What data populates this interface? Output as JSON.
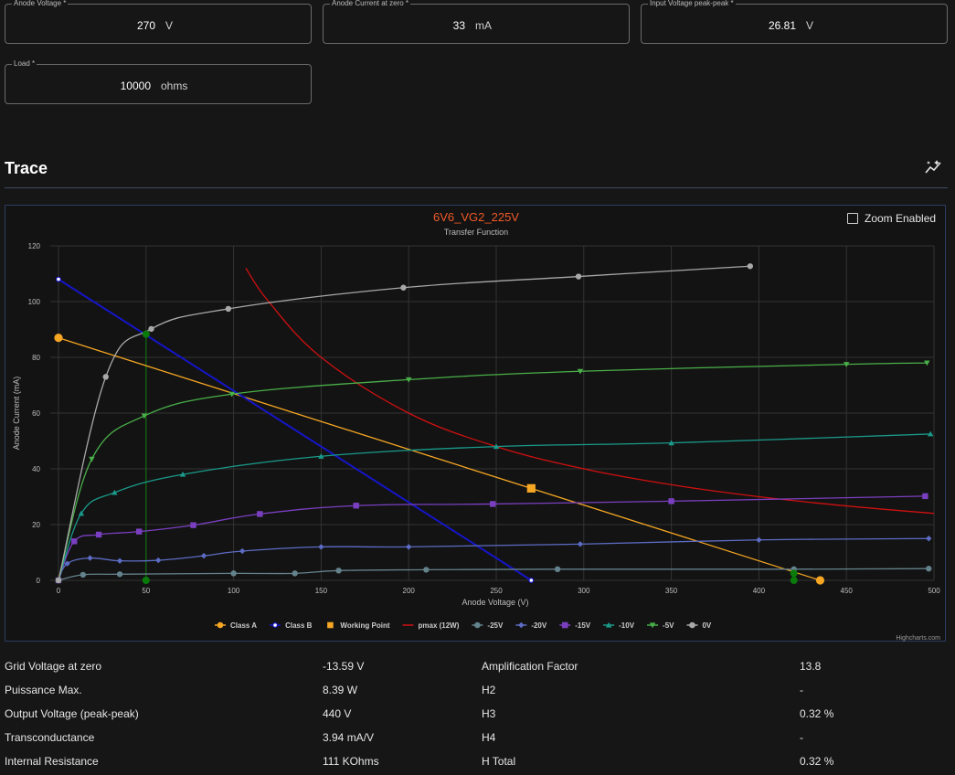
{
  "fields": {
    "anode_voltage": {
      "label": "Anode Voltage *",
      "value": "270",
      "unit": "V"
    },
    "anode_current": {
      "label": "Anode Current at zero *",
      "value": "33",
      "unit": "mA"
    },
    "input_voltage": {
      "label": "Input Voltage peak-peak *",
      "value": "26.81",
      "unit": "V"
    },
    "load": {
      "label": "Load *",
      "value": "10000",
      "unit": "ohms"
    }
  },
  "trace": {
    "title": "Trace",
    "zoom_label": "Zoom Enabled",
    "icon": "chart-sparkle-icon"
  },
  "chart_data": {
    "type": "line",
    "title": "6V6_VG2_225V",
    "subtitle": "Transfer Function",
    "xlabel": "Anode Voltage (V)",
    "ylabel": "Anode Current (mA)",
    "xlim": [
      0,
      500
    ],
    "ylim": [
      0,
      120
    ],
    "xticks": [
      0,
      50,
      100,
      150,
      200,
      250,
      300,
      350,
      400,
      450,
      500
    ],
    "yticks": [
      0,
      20,
      40,
      60,
      80,
      100,
      120
    ],
    "grid": true,
    "legend_position": "bottom-center",
    "credits": "Highcharts.com",
    "series": [
      {
        "name": "Class A",
        "color": "#f5a623",
        "marker": "circle",
        "lineWidth": 1.3,
        "points": [
          [
            0,
            87
          ],
          [
            435,
            0
          ]
        ]
      },
      {
        "name": "Class B",
        "color": "#1515c8",
        "marker": "open-circle",
        "lineWidth": 2,
        "points": [
          [
            0,
            108
          ],
          [
            270,
            0
          ]
        ]
      },
      {
        "name": "Working Point",
        "color": "#f5a623",
        "marker": "square",
        "lineWidth": 0,
        "points": [
          [
            270,
            33
          ]
        ]
      },
      {
        "name": "pmax (12W)",
        "color": "#d01010",
        "marker": "none",
        "lineWidth": 1.3,
        "points": [
          [
            107,
            112
          ],
          [
            120,
            100
          ],
          [
            150,
            80
          ],
          [
            200,
            60
          ],
          [
            250,
            48
          ],
          [
            300,
            40
          ],
          [
            350,
            34.3
          ],
          [
            400,
            30
          ],
          [
            450,
            26.7
          ],
          [
            500,
            24
          ]
        ]
      },
      {
        "name": "-25V",
        "color": "#64828c",
        "marker": "circle",
        "points": [
          [
            0,
            0
          ],
          [
            14,
            2
          ],
          [
            35,
            2.2
          ],
          [
            100,
            2.5
          ],
          [
            135,
            2.5
          ],
          [
            160,
            3.5
          ],
          [
            210,
            3.8
          ],
          [
            285,
            4
          ],
          [
            420,
            4
          ],
          [
            497,
            4.2
          ]
        ]
      },
      {
        "name": "-20V",
        "color": "#5c6cc4",
        "marker": "diamond",
        "points": [
          [
            0,
            0
          ],
          [
            5,
            6
          ],
          [
            18,
            8
          ],
          [
            35,
            7
          ],
          [
            57,
            7.2
          ],
          [
            83,
            8.8
          ],
          [
            105,
            10.5
          ],
          [
            150,
            12
          ],
          [
            200,
            12
          ],
          [
            298,
            13
          ],
          [
            400,
            14.5
          ],
          [
            497,
            15
          ]
        ]
      },
      {
        "name": "-15V",
        "color": "#7a3fc0",
        "marker": "square",
        "points": [
          [
            0,
            0
          ],
          [
            9,
            14
          ],
          [
            23,
            16.4
          ],
          [
            46,
            17.5
          ],
          [
            77,
            19.8
          ],
          [
            115,
            23.8
          ],
          [
            170,
            26.8
          ],
          [
            248,
            27.4
          ],
          [
            350,
            28.4
          ],
          [
            495,
            30.2
          ]
        ]
      },
      {
        "name": "-10V",
        "color": "#1a9a8a",
        "marker": "triangle",
        "points": [
          [
            0,
            0
          ],
          [
            13,
            24
          ],
          [
            32,
            31.5
          ],
          [
            71,
            38
          ],
          [
            150,
            44.5
          ],
          [
            250,
            48
          ],
          [
            350,
            49.3
          ],
          [
            498,
            52.5
          ]
        ]
      },
      {
        "name": "-5V",
        "color": "#49b049",
        "marker": "triangle-down",
        "points": [
          [
            0,
            0
          ],
          [
            19,
            43.5
          ],
          [
            49,
            59
          ],
          [
            99,
            66.8
          ],
          [
            200,
            72
          ],
          [
            298,
            75
          ],
          [
            450,
            77.5
          ],
          [
            496,
            78
          ]
        ]
      },
      {
        "name": "0V",
        "color": "#a8a8a8",
        "marker": "circle",
        "points": [
          [
            0,
            0
          ],
          [
            27,
            73
          ],
          [
            53,
            90.2
          ],
          [
            97,
            97.4
          ],
          [
            197,
            105
          ],
          [
            297,
            109
          ],
          [
            395,
            112.7
          ]
        ]
      }
    ],
    "extra_markers": {
      "color": "#0a7a0a",
      "vertical_line_x": 50,
      "points": [
        [
          50,
          88.3
        ],
        [
          50,
          0
        ],
        [
          420,
          2.5
        ],
        [
          420,
          0
        ]
      ]
    }
  },
  "stats": [
    {
      "label1": "Grid Voltage at zero",
      "value1": "-13.59 V",
      "label2": "Amplification Factor",
      "value2": "13.8"
    },
    {
      "label1": "Puissance Max.",
      "value1": "8.39 W",
      "label2": "H2",
      "value2": "-"
    },
    {
      "label1": "Output Voltage (peak-peak)",
      "value1": "440 V",
      "label2": "H3",
      "value2": "0.32 %"
    },
    {
      "label1": "Transconductance",
      "value1": "3.94 mA/V",
      "label2": "H4",
      "value2": "-"
    },
    {
      "label1": "Internal Resistance",
      "value1": "111 KOhms",
      "label2": "H Total",
      "value2": "0.32 %"
    }
  ]
}
